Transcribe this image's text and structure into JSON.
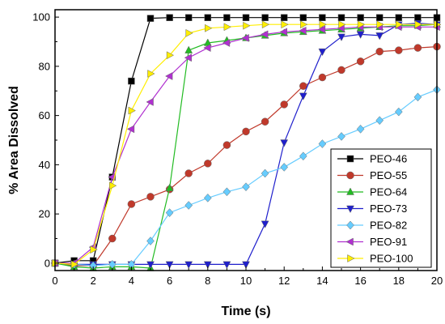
{
  "chart_data": {
    "type": "line",
    "xlabel": "Time (s)",
    "ylabel": "% Area Dissolved",
    "xlim": [
      0,
      20
    ],
    "ylim": [
      -3,
      103
    ],
    "xticks": [
      "0",
      "2",
      "4",
      "6",
      "8",
      "10",
      "12",
      "14",
      "16",
      "18",
      "20"
    ],
    "yticks": [
      "0",
      "20",
      "40",
      "60",
      "80",
      "100"
    ],
    "grid": false,
    "legend_position": "bottom-right",
    "series": [
      {
        "name": "PEO-46",
        "color": "#000000",
        "marker": "square",
        "x": [
          0,
          1,
          2,
          3,
          4,
          5,
          6,
          7,
          8,
          9,
          10,
          11,
          12,
          13,
          14,
          15,
          16,
          17,
          18,
          19,
          20
        ],
        "y": [
          0,
          1,
          1,
          35,
          74,
          99.5,
          99.8,
          99.8,
          99.8,
          99.8,
          99.8,
          99.8,
          99.8,
          99.8,
          99.8,
          99.8,
          99.8,
          99.8,
          99.8,
          99.8,
          99.8
        ]
      },
      {
        "name": "PEO-55",
        "color": "#c0392b",
        "marker": "circle",
        "x": [
          0,
          1,
          2,
          3,
          4,
          5,
          6,
          7,
          8,
          9,
          10,
          11,
          12,
          13,
          14,
          15,
          16,
          17,
          18,
          19,
          20
        ],
        "y": [
          0,
          -1,
          -1,
          10,
          24,
          27,
          30,
          36.5,
          40.5,
          48,
          53.5,
          57.5,
          64.5,
          72,
          75.5,
          78.5,
          82,
          86,
          86.5,
          87.5,
          88
        ]
      },
      {
        "name": "PEO-64",
        "color": "#22bb22",
        "marker": "triangle-up",
        "x": [
          0,
          1,
          2,
          3,
          4,
          5,
          6,
          7,
          8,
          9,
          10,
          11,
          12,
          13,
          14,
          15,
          16,
          17,
          18,
          19,
          20
        ],
        "y": [
          0,
          -1.5,
          -2,
          -1.5,
          -1.5,
          -2,
          30.5,
          86.5,
          89.5,
          90.5,
          91.5,
          92.5,
          93.5,
          94,
          94.5,
          95,
          95.5,
          96,
          96.5,
          96.5,
          97
        ]
      },
      {
        "name": "PEO-73",
        "color": "#1f1fcc",
        "marker": "triangle-down",
        "x": [
          0,
          1,
          2,
          3,
          4,
          5,
          6,
          7,
          8,
          9,
          10,
          11,
          12,
          13,
          14,
          15,
          16,
          17,
          18,
          19,
          20
        ],
        "y": [
          0,
          -0.5,
          -0.5,
          -0.5,
          -0.5,
          -0.5,
          -0.5,
          -0.5,
          -0.5,
          -0.5,
          -0.5,
          16,
          49,
          68,
          86,
          92,
          93,
          92.5,
          97,
          97.5,
          97
        ]
      },
      {
        "name": "PEO-82",
        "color": "#66ccff",
        "marker": "diamond",
        "x": [
          0,
          1,
          2,
          3,
          4,
          5,
          6,
          7,
          8,
          9,
          10,
          11,
          12,
          13,
          14,
          15,
          16,
          17,
          18,
          19,
          20
        ],
        "y": [
          0,
          -0.5,
          -1,
          -0.5,
          -0.5,
          9,
          20.5,
          23.5,
          26.5,
          29,
          31,
          36.5,
          39,
          43.5,
          48.5,
          51.5,
          54.5,
          58,
          61.5,
          67.5,
          70.5
        ]
      },
      {
        "name": "PEO-91",
        "color": "#b030d0",
        "marker": "triangle-left",
        "x": [
          0,
          1,
          2,
          3,
          4,
          5,
          6,
          7,
          8,
          9,
          10,
          11,
          12,
          13,
          14,
          15,
          16,
          17,
          18,
          19,
          20
        ],
        "y": [
          0,
          0,
          6.5,
          35,
          54.5,
          65.5,
          76,
          83.5,
          87.5,
          89.5,
          91.5,
          93,
          94,
          94.5,
          95,
          95.5,
          96,
          96,
          96,
          96,
          96
        ]
      },
      {
        "name": "PEO-100",
        "color": "#ffee00",
        "marker": "triangle-right",
        "x": [
          0,
          1,
          2,
          3,
          4,
          5,
          6,
          7,
          8,
          9,
          10,
          11,
          12,
          13,
          14,
          15,
          16,
          17,
          18,
          19,
          20
        ],
        "y": [
          0,
          -0.5,
          5.5,
          31.5,
          62,
          77,
          84.5,
          93.5,
          95.5,
          96,
          96.5,
          97,
          97,
          97,
          97,
          97,
          97,
          97,
          97,
          97,
          97
        ]
      }
    ]
  }
}
